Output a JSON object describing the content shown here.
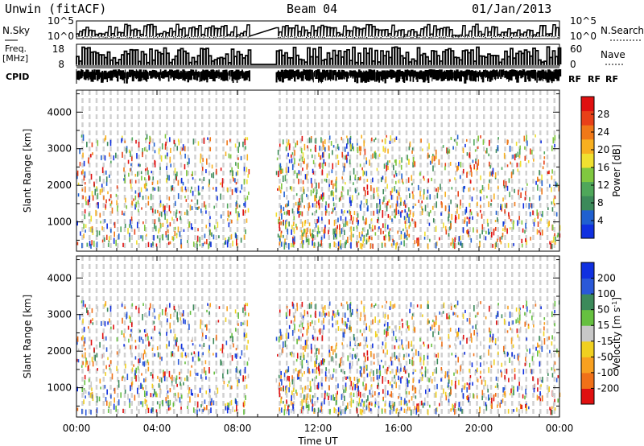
{
  "header": {
    "station": "Unwin (fitACF)",
    "beam": "Beam 04",
    "date": "01/Jan/2013"
  },
  "chart_data": [
    {
      "type": "line",
      "panel": "noise",
      "left_label": "N.Sky",
      "right_label": "N.Search",
      "left_ticks": [
        "10^5",
        "10^0"
      ],
      "right_ticks": [
        "10^5",
        "10^0"
      ]
    },
    {
      "type": "line",
      "panel": "frequency-nave",
      "left_label_1": "Freq.",
      "left_label_2": "[MHz]",
      "right_label": "Nave",
      "left_ticks": [
        18,
        8
      ],
      "right_ticks": [
        60,
        0
      ]
    },
    {
      "type": "table",
      "panel": "cpid",
      "label": "CPID",
      "value_text": "RF"
    },
    {
      "type": "heatmap",
      "panel": "power",
      "ylabel": "Slant Range [km]",
      "y_ticks": [
        1000,
        2000,
        3000,
        4000
      ],
      "ylim": [
        200,
        4600
      ],
      "colorbar_label": "Power [dB]",
      "colorbar_ticks": [
        4,
        8,
        12,
        16,
        20,
        24,
        28
      ],
      "colorbar_colors": [
        "#1030e0",
        "#2060d0",
        "#3c8a5a",
        "#4fa75a",
        "#80c840",
        "#f0e030",
        "#f8b020",
        "#f07818",
        "#e84018",
        "#e01010"
      ]
    },
    {
      "type": "heatmap",
      "panel": "velocity",
      "ylabel": "Slant Range [km]",
      "y_ticks": [
        1000,
        2000,
        3000,
        4000
      ],
      "ylim": [
        200,
        4600
      ],
      "colorbar_label": "Velocity [m s",
      "colorbar_label_sup": "-1",
      "colorbar_label_end": "]",
      "colorbar_ticks": [
        "200",
        "100",
        "50",
        "15",
        "-15",
        "-50",
        "-100",
        "-200"
      ],
      "colorbar_colors": [
        "#1030e0",
        "#2a58d8",
        "#3c8a5a",
        "#66c040",
        "#c8c8c8",
        "#f0d020",
        "#f8a020",
        "#f07018",
        "#e01010"
      ]
    }
  ],
  "x_axis": {
    "label": "Time UT",
    "ticks": [
      "00:00",
      "04:00",
      "08:00",
      "12:00",
      "16:00",
      "20:00",
      "00:00"
    ],
    "range_hours": [
      0,
      24
    ],
    "data_gap_hours": [
      8.55,
      9.9
    ]
  }
}
